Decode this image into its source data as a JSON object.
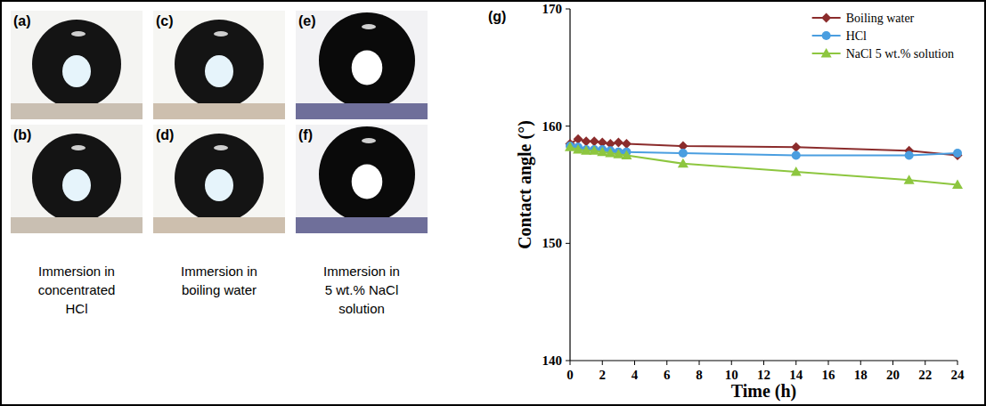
{
  "photos": [
    {
      "labels": [
        "(a)",
        "(b)"
      ],
      "caption_lines": [
        "Immersion in",
        "concentrated",
        "HCl"
      ]
    },
    {
      "labels": [
        "(c)",
        "(d)"
      ],
      "caption_lines": [
        "Immersion in",
        "boiling water"
      ]
    },
    {
      "labels": [
        "(e)",
        "(f)"
      ],
      "caption_lines": [
        "Immersion in",
        "5 wt.% NaCl",
        "solution"
      ]
    }
  ],
  "chart_data": {
    "type": "line",
    "panel_label": "(g)",
    "x_label": "Time (h)",
    "y_label": "Contact angle (°)",
    "xlim": [
      0,
      24
    ],
    "xticks": [
      0,
      2,
      4,
      6,
      8,
      10,
      12,
      14,
      16,
      18,
      20,
      22,
      24
    ],
    "ylim": [
      140,
      170
    ],
    "yticks": [
      140,
      150,
      160,
      170
    ],
    "legend": "top-right",
    "series": [
      {
        "name": "Boiling water",
        "color": "#8b2c2c",
        "marker": "diamond",
        "x": [
          0,
          0.5,
          1,
          1.5,
          2,
          2.5,
          3,
          3.5,
          7,
          14,
          21,
          24
        ],
        "values": [
          158.5,
          158.9,
          158.7,
          158.7,
          158.6,
          158.5,
          158.6,
          158.5,
          158.3,
          158.2,
          157.9,
          157.5
        ]
      },
      {
        "name": "HCl",
        "color": "#4a9ee0",
        "marker": "circle",
        "x": [
          0,
          0.5,
          1,
          1.5,
          2,
          2.5,
          3,
          3.5,
          7,
          14,
          21,
          24
        ],
        "values": [
          158.3,
          158.2,
          158.0,
          158.0,
          158.0,
          157.9,
          157.8,
          157.8,
          157.7,
          157.5,
          157.5,
          157.7
        ]
      },
      {
        "name": "NaCl 5 wt.% solution",
        "color": "#8dc63f",
        "marker": "triangle",
        "x": [
          0,
          0.5,
          1,
          1.5,
          2,
          2.5,
          3,
          3.5,
          7,
          14,
          21,
          24
        ],
        "values": [
          158.2,
          158.0,
          157.9,
          157.9,
          157.8,
          157.7,
          157.6,
          157.5,
          156.8,
          156.1,
          155.4,
          155.0
        ]
      }
    ]
  }
}
